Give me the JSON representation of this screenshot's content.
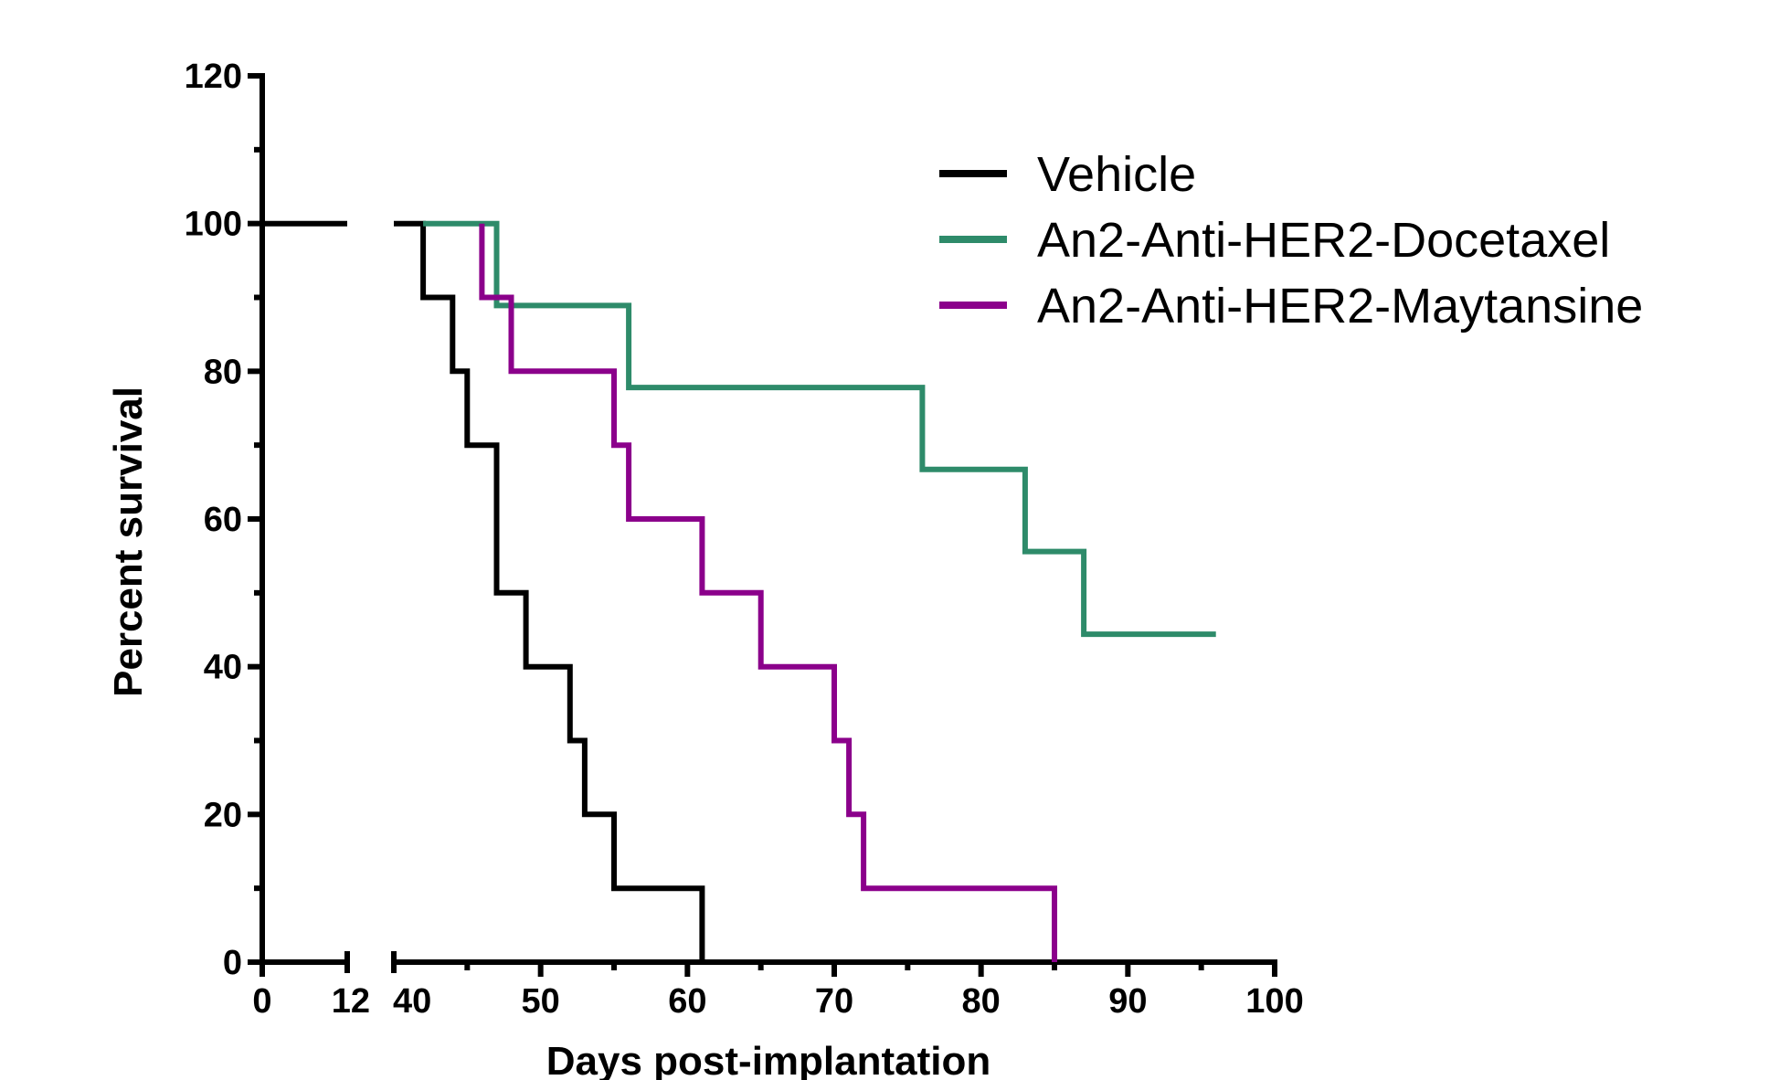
{
  "chart_data": {
    "type": "line",
    "subtype": "kaplan-meier-step",
    "xlabel": "Days post-implantation",
    "ylabel": "Percent survival",
    "ylim": [
      0,
      120
    ],
    "yticks": [
      0,
      20,
      40,
      60,
      80,
      100,
      120
    ],
    "x_axis_segments": [
      {
        "range": [
          0,
          12
        ],
        "tick_labels": [
          "0",
          "12"
        ]
      },
      {
        "range": [
          40,
          100
        ],
        "tick_labels": [
          "40",
          "50",
          "60",
          "70",
          "80",
          "90",
          "100"
        ]
      }
    ],
    "legend_position": "top-right",
    "series": [
      {
        "name": "Vehicle",
        "color": "#000000",
        "points": [
          [
            0,
            100
          ],
          [
            12,
            100
          ],
          [
            40,
            100
          ],
          [
            42,
            100
          ],
          [
            42,
            90
          ],
          [
            44,
            90
          ],
          [
            44,
            80
          ],
          [
            45,
            80
          ],
          [
            45,
            70
          ],
          [
            47,
            70
          ],
          [
            47,
            50
          ],
          [
            49,
            50
          ],
          [
            49,
            40
          ],
          [
            52,
            40
          ],
          [
            52,
            30
          ],
          [
            53,
            30
          ],
          [
            53,
            20
          ],
          [
            55,
            20
          ],
          [
            55,
            10
          ],
          [
            61,
            10
          ],
          [
            61,
            0
          ]
        ]
      },
      {
        "name": "An2-Anti-HER2-Docetaxel",
        "color": "#2e8b6a",
        "points": [
          [
            42,
            100
          ],
          [
            47,
            100
          ],
          [
            47,
            88.9
          ],
          [
            56,
            88.9
          ],
          [
            56,
            77.8
          ],
          [
            76,
            77.8
          ],
          [
            76,
            66.7
          ],
          [
            83,
            66.7
          ],
          [
            83,
            55.6
          ],
          [
            87,
            55.6
          ],
          [
            87,
            44.4
          ],
          [
            96,
            44.4
          ]
        ]
      },
      {
        "name": "An2-Anti-HER2-Maytansine",
        "color": "#8b008b",
        "points": [
          [
            46,
            100
          ],
          [
            46,
            90
          ],
          [
            48,
            90
          ],
          [
            48,
            80
          ],
          [
            55,
            80
          ],
          [
            55,
            70
          ],
          [
            56,
            70
          ],
          [
            56,
            60
          ],
          [
            61,
            60
          ],
          [
            61,
            50
          ],
          [
            65,
            50
          ],
          [
            65,
            40
          ],
          [
            70,
            40
          ],
          [
            70,
            30
          ],
          [
            71,
            30
          ],
          [
            71,
            20
          ],
          [
            72,
            20
          ],
          [
            72,
            10
          ],
          [
            85,
            10
          ],
          [
            85,
            0
          ]
        ]
      }
    ]
  }
}
